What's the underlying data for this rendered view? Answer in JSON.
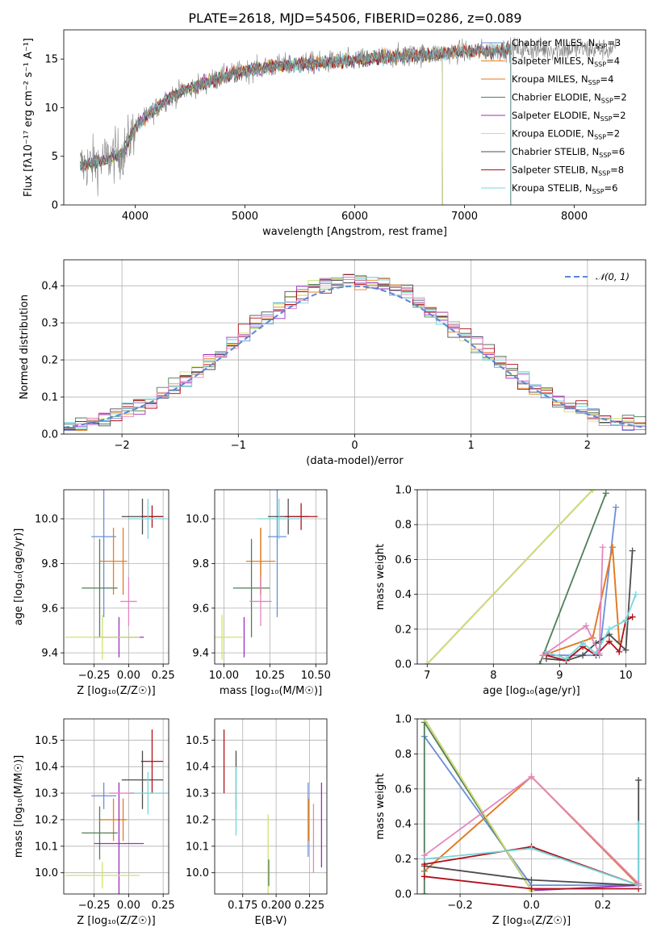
{
  "figure_title": "PLATE=2618, MJD=54506, FIBERID=0286, z=0.089",
  "colors": {
    "chabrier_miles": "#6a8fd8",
    "salpeter_miles": "#e8811a",
    "kroupa_miles": "#e27a25",
    "chabrier_elodie": "#4f7f57",
    "salpeter_elodie": "#9a2fbf",
    "kroupa_elodie": "#cfe26c",
    "chabrier_stelib": "#4d4d4d",
    "salpeter_stelib": "#b0101a",
    "kroupa_stelib": "#77d6da",
    "pink": "#e585c0",
    "data": "#808080",
    "normal": "#5a87d6"
  },
  "chart_data": [
    {
      "id": "spectrum",
      "type": "line",
      "title": "PLATE=2618, MJD=54506, FIBERID=0286, z=0.089",
      "xlabel": "wavelength [Angstrom, rest frame]",
      "ylabel": "Flux [fλ10⁻¹⁷ erg cm⁻² s⁻¹ A⁻¹]",
      "xlim": [
        3350,
        8650
      ],
      "ylim": [
        0,
        18
      ],
      "xticks": [
        4000,
        5000,
        6000,
        7000,
        8000
      ],
      "yticks": [
        0,
        5,
        10,
        15
      ],
      "legend": {
        "location": "upper right",
        "entries": [
          {
            "label": "Chabrier MILES, N",
            "sub": "SSP",
            "suffix": "=3",
            "color": "#6a8fd8"
          },
          {
            "label": "Salpeter MILES, N",
            "sub": "SSP",
            "suffix": "=4",
            "color": "#e8811a"
          },
          {
            "label": "Kroupa MILES, N",
            "sub": "SSP",
            "suffix": "=4",
            "color": "#e27a25"
          },
          {
            "label": "Chabrier ELODIE, N",
            "sub": "SSP",
            "suffix": "=2",
            "color": "#4f7f57"
          },
          {
            "label": "Salpeter ELODIE, N",
            "sub": "SSP",
            "suffix": "=2",
            "color": "#9a2fbf"
          },
          {
            "label": "Kroupa ELODIE, N",
            "sub": "SSP",
            "suffix": "=2",
            "color": "#cfe26c"
          },
          {
            "label": "Chabrier STELIB, N",
            "sub": "SSP",
            "suffix": "=6",
            "color": "#4d4d4d"
          },
          {
            "label": "Salpeter STELIB, N",
            "sub": "SSP",
            "suffix": "=8",
            "color": "#b0101a"
          },
          {
            "label": "Kroupa STELIB, N",
            "sub": "SSP",
            "suffix": "=6",
            "color": "#77d6da"
          }
        ]
      },
      "continuum": {
        "x": [
          3500,
          3700,
          3900,
          4000,
          4100,
          4300,
          4500,
          4700,
          4900,
          5100,
          5300,
          5500,
          5800,
          6100,
          6400,
          6700,
          7000,
          7200,
          7400
        ],
        "y": [
          4.0,
          4.5,
          5.5,
          8.0,
          9.0,
          11.0,
          12.0,
          12.8,
          13.5,
          14.0,
          14.3,
          14.5,
          14.7,
          15.0,
          15.3,
          15.5,
          15.8,
          15.8,
          16.0
        ]
      },
      "noise_amplitude_lt_4000": 3.0,
      "noise_amplitude_gt_4000": 1.3,
      "elodie_cutoff": 6800,
      "model_cutoff": 7420,
      "data_range": [
        3500,
        8380
      ]
    },
    {
      "id": "residuals",
      "type": "histogram",
      "xlabel": "(data-model)/error",
      "ylabel": "Normed distribution",
      "xlim": [
        -2.5,
        2.5
      ],
      "ylim": [
        0,
        0.47
      ],
      "xticks": [
        -2,
        -1,
        0,
        1,
        2
      ],
      "yticks": [
        0.0,
        0.1,
        0.2,
        0.3,
        0.4
      ],
      "bin_width": 0.1,
      "overlay": {
        "label": "𝒩(0, 1)",
        "mean": 0,
        "sigma": 1,
        "style": "dashed",
        "color": "#5a87d6"
      }
    },
    {
      "id": "Z_vs_age",
      "type": "errorbar",
      "xlabel": "Z [log₁₀(Z/Z☉)]",
      "ylabel": "age  [log₁₀(age/yr)]",
      "xlim": [
        -0.47,
        0.29
      ],
      "ylim": [
        9.35,
        10.13
      ],
      "xticks": [
        -0.25,
        0.0,
        0.25
      ],
      "yticks": [
        9.4,
        9.6,
        9.8,
        10.0
      ],
      "points": [
        {
          "name": "Chabrier MILES",
          "color": "#6a8fd8",
          "x": -0.18,
          "xerr": 0.09,
          "y": 9.92,
          "yerr": 0.36
        },
        {
          "name": "Salpeter MILES",
          "color": "#e8811a",
          "x": -0.11,
          "xerr": 0.1,
          "y": 9.81,
          "yerr": 0.15
        },
        {
          "name": "Kroupa MILES",
          "color": "#e27a25",
          "x": -0.04,
          "xerr": 0.0,
          "y": 9.81,
          "yerr": 0.15
        },
        {
          "name": "Chabrier ELODIE",
          "color": "#4f7f57",
          "x": -0.21,
          "xerr": 0.13,
          "y": 9.69,
          "yerr": 0.22
        },
        {
          "name": "Salpeter ELODIE",
          "color": "#9a2fbf",
          "x": -0.07,
          "xerr": 0.18,
          "y": 9.47,
          "yerr": 0.09
        },
        {
          "name": "Kroupa ELODIE",
          "color": "#cfe26c",
          "x": -0.19,
          "xerr": 0.27,
          "y": 9.47,
          "yerr": 0.1
        },
        {
          "name": "Chabrier STELIB",
          "color": "#4d4d4d",
          "x": 0.1,
          "xerr": 0.15,
          "y": 10.01,
          "yerr": 0.08
        },
        {
          "name": "Salpeter STELIB",
          "color": "#b0101a",
          "x": 0.17,
          "xerr": 0.08,
          "y": 10.01,
          "yerr": 0.05
        },
        {
          "name": "Kroupa STELIB",
          "color": "#77d6da",
          "x": 0.14,
          "xerr": 0.14,
          "y": 10.0,
          "yerr": 0.09
        },
        {
          "name": "Pink",
          "color": "#e585c0",
          "x": 0.0,
          "xerr": 0.06,
          "y": 9.63,
          "yerr": 0.11
        }
      ]
    },
    {
      "id": "mass_vs_age",
      "type": "errorbar",
      "xlabel": "mass [log₁₀(M/M☉)]",
      "ylabel": "",
      "xlim": [
        9.95,
        10.56
      ],
      "ylim": [
        9.35,
        10.13
      ],
      "xticks": [
        10.0,
        10.25,
        10.5
      ],
      "yticks": [
        9.4,
        9.6,
        9.8,
        10.0
      ],
      "points": [
        {
          "name": "Chabrier MILES",
          "color": "#6a8fd8",
          "x": 10.29,
          "xerr": 0.05,
          "y": 9.92,
          "yerr": 0.36
        },
        {
          "name": "Salpeter MILES",
          "color": "#e8811a",
          "x": 10.2,
          "xerr": 0.08,
          "y": 9.81,
          "yerr": 0.15
        },
        {
          "name": "Kroupa MILES",
          "color": "#e27a25",
          "x": 10.2,
          "xerr": 0.0,
          "y": 9.81,
          "yerr": 0.15
        },
        {
          "name": "Chabrier ELODIE",
          "color": "#4f7f57",
          "x": 10.15,
          "xerr": 0.1,
          "y": 9.69,
          "yerr": 0.22
        },
        {
          "name": "Salpeter ELODIE",
          "color": "#9a2fbf",
          "x": 10.11,
          "xerr": 0.0,
          "y": 9.47,
          "yerr": 0.09
        },
        {
          "name": "Kroupa ELODIE",
          "color": "#cfe26c",
          "x": 9.99,
          "xerr": 0.0,
          "y": 9.47,
          "yerr": 0.1
        },
        {
          "name": "Chabrier STELIB",
          "color": "#4d4d4d",
          "x": 10.35,
          "xerr": 0.11,
          "y": 10.01,
          "yerr": 0.08
        },
        {
          "name": "Salpeter STELIB",
          "color": "#b0101a",
          "x": 10.42,
          "xerr": 0.09,
          "y": 10.01,
          "yerr": 0.06
        },
        {
          "name": "Kroupa STELIB",
          "color": "#77d6da",
          "x": 10.3,
          "xerr": 0.12,
          "y": 10.0,
          "yerr": 0.09
        },
        {
          "name": "Pink",
          "color": "#e585c0",
          "x": 10.2,
          "xerr": 0.06,
          "y": 9.63,
          "yerr": 0.11
        },
        {
          "name": "Yellow-green",
          "color": "#cfe26c",
          "x": 10.0,
          "xerr": 0.1,
          "y": 9.47,
          "yerr": 0.0
        }
      ]
    },
    {
      "id": "age_vs_weight",
      "type": "line",
      "xlabel": "age  [log₁₀(age/yr)]",
      "ylabel": "mass weight",
      "xlim": [
        6.85,
        10.3
      ],
      "ylim": [
        0,
        1.0
      ],
      "xticks": [
        7,
        8,
        9,
        10
      ],
      "yticks": [
        0.0,
        0.2,
        0.4,
        0.6,
        0.8,
        1.0
      ],
      "series": [
        {
          "name": "Chabrier MILES",
          "color": "#6a8fd8",
          "x": [
            8.75,
            9.6,
            9.85
          ],
          "y": [
            0.05,
            0.05,
            0.9
          ]
        },
        {
          "name": "Salpeter MILES",
          "color": "#e8811a",
          "x": [
            8.75,
            9.5,
            9.8,
            9.9
          ],
          "y": [
            0.05,
            0.15,
            0.67,
            0.13
          ]
        },
        {
          "name": "Kroupa MILES",
          "color": "#e27a25",
          "x": [
            8.75,
            9.5,
            9.8,
            9.9
          ],
          "y": [
            0.05,
            0.15,
            0.67,
            0.13
          ]
        },
        {
          "name": "Chabrier ELODIE",
          "color": "#4f7f57",
          "x": [
            8.7,
            9.7
          ],
          "y": [
            0.0,
            0.98
          ]
        },
        {
          "name": "Salpeter ELODIE",
          "color": "#9a2fbf",
          "x": [
            7.0,
            9.5
          ],
          "y": [
            0.0,
            1.0
          ]
        },
        {
          "name": "Kroupa ELODIE",
          "color": "#cfe26c",
          "x": [
            7.0,
            9.5
          ],
          "y": [
            0.0,
            1.0
          ]
        },
        {
          "name": "Chabrier STELIB",
          "color": "#4d4d4d",
          "x": [
            8.8,
            9.1,
            9.35,
            9.55,
            9.75,
            10.0,
            10.1
          ],
          "y": [
            0.03,
            0.02,
            0.05,
            0.12,
            0.17,
            0.08,
            0.65
          ]
        },
        {
          "name": "Salpeter STELIB",
          "color": "#b0101a",
          "x": [
            8.8,
            9.1,
            9.35,
            9.55,
            9.75,
            9.9,
            10.0,
            10.1
          ],
          "y": [
            0.05,
            0.02,
            0.1,
            0.05,
            0.13,
            0.07,
            0.25,
            0.27
          ]
        },
        {
          "name": "Kroupa STELIB",
          "color": "#77d6da",
          "x": [
            8.8,
            9.1,
            9.35,
            9.55,
            9.75,
            10.0,
            10.15
          ],
          "y": [
            0.07,
            0.03,
            0.12,
            0.06,
            0.2,
            0.25,
            0.4
          ]
        },
        {
          "name": "Pink",
          "color": "#e585c0",
          "x": [
            8.75,
            9.4,
            9.6,
            9.65
          ],
          "y": [
            0.05,
            0.22,
            0.06,
            0.67
          ]
        }
      ]
    },
    {
      "id": "Z_vs_mass",
      "type": "errorbar",
      "xlabel": "Z [log₁₀(Z/Z☉)]",
      "ylabel": "mass [log₁₀(M/M☉)]",
      "xlim": [
        -0.47,
        0.29
      ],
      "ylim": [
        9.92,
        10.58
      ],
      "xticks": [
        -0.25,
        0.0,
        0.25
      ],
      "yticks": [
        10.0,
        10.1,
        10.2,
        10.3,
        10.4,
        10.5
      ],
      "points": [
        {
          "name": "Chabrier MILES",
          "color": "#6a8fd8",
          "x": -0.18,
          "xerr": 0.09,
          "y": 10.29,
          "yerr": 0.05
        },
        {
          "name": "Salpeter MILES",
          "color": "#e8811a",
          "x": -0.11,
          "xerr": 0.1,
          "y": 10.2,
          "yerr": 0.08
        },
        {
          "name": "Kroupa MILES",
          "color": "#e27a25",
          "x": -0.04,
          "xerr": 0.0,
          "y": 10.2,
          "yerr": 0.08
        },
        {
          "name": "Chabrier ELODIE",
          "color": "#4f7f57",
          "x": -0.21,
          "xerr": 0.13,
          "y": 10.15,
          "yerr": 0.1
        },
        {
          "name": "Salpeter ELODIE",
          "color": "#9a2fbf",
          "x": -0.07,
          "xerr": 0.18,
          "y": 10.11,
          "yerr": 0.23
        },
        {
          "name": "Kroupa ELODIE",
          "color": "#cfe26c",
          "x": -0.19,
          "xerr": 0.27,
          "y": 9.99,
          "yerr": 0.05
        },
        {
          "name": "Chabrier STELIB",
          "color": "#4d4d4d",
          "x": 0.1,
          "xerr": 0.15,
          "y": 10.35,
          "yerr": 0.11
        },
        {
          "name": "Salpeter STELIB",
          "color": "#b0101a",
          "x": 0.17,
          "xerr": 0.08,
          "y": 10.42,
          "yerr": 0.12
        },
        {
          "name": "Kroupa STELIB",
          "color": "#77d6da",
          "x": 0.14,
          "xerr": 0.14,
          "y": 10.3,
          "yerr": 0.08
        },
        {
          "name": "Pink",
          "color": "#e585c0",
          "x": -0.05,
          "xerr": 0.09,
          "y": 10.3,
          "yerr": 0.0
        }
      ]
    },
    {
      "id": "EBV_vs_mass",
      "type": "errorbar",
      "xlabel": "E(B-V)",
      "ylabel": "",
      "xlim": [
        0.154,
        0.238
      ],
      "ylim": [
        9.92,
        10.58
      ],
      "xticks": [
        0.175,
        0.2,
        0.225
      ],
      "xticklabels": [
        "0.175",
        "0.200",
        "0.225"
      ],
      "yticks": [
        10.0,
        10.1,
        10.2,
        10.3,
        10.4,
        10.5
      ],
      "points": [
        {
          "name": "Salpeter STELIB",
          "color": "#b0101a",
          "x": 0.161,
          "xerr": 0,
          "y": 10.42,
          "yerr": 0.12
        },
        {
          "name": "Chabrier STELIB",
          "color": "#4d4d4d",
          "x": 0.17,
          "xerr": 0,
          "y": 10.35,
          "yerr": 0.11
        },
        {
          "name": "Kroupa STELIB",
          "color": "#77d6da",
          "x": 0.17,
          "xerr": 0,
          "y": 10.27,
          "yerr": 0.13
        },
        {
          "name": "Kroupa ELODIE",
          "color": "#cfe26c",
          "x": 0.194,
          "xerr": 0,
          "y": 10.04,
          "yerr": 0.18
        },
        {
          "name": "Chabrier ELODIE",
          "color": "#4f7f57",
          "x": 0.1945,
          "xerr": 0,
          "y": 10.0,
          "yerr": 0.05
        },
        {
          "name": "Chabrier MILES",
          "color": "#6a8fd8",
          "x": 0.224,
          "xerr": 0,
          "y": 10.2,
          "yerr": 0.14
        },
        {
          "name": "Salpeter MILES",
          "color": "#e8811a",
          "x": 0.2243,
          "xerr": 0,
          "y": 10.2,
          "yerr": 0.08
        },
        {
          "name": "Pink",
          "color": "#e585c0",
          "x": 0.228,
          "xerr": 0,
          "y": 10.13,
          "yerr": 0.13
        },
        {
          "name": "Salpeter ELODIE",
          "color": "#9a2fbf",
          "x": 0.234,
          "xerr": 0,
          "y": 10.18,
          "yerr": 0.16
        }
      ]
    },
    {
      "id": "Zcomp_vs_weight",
      "type": "line",
      "xlabel": "Z [log₁₀(Z/Z☉)]",
      "ylabel": "mass weight",
      "xlim": [
        -0.32,
        0.32
      ],
      "ylim": [
        0,
        1.0
      ],
      "xticks": [
        -0.2,
        0.0,
        0.2
      ],
      "yticks": [
        0.0,
        0.2,
        0.4,
        0.6,
        0.8,
        1.0
      ],
      "series": [
        {
          "name": "Chabrier MILES",
          "color": "#6a8fd8",
          "x": [
            -0.3,
            0.0,
            0.3
          ],
          "y": [
            0.9,
            0.05,
            0.05
          ]
        },
        {
          "name": "Salpeter MILES",
          "color": "#e8811a",
          "x": [
            -0.3,
            0.0,
            0.3
          ],
          "y": [
            0.13,
            0.67,
            0.05
          ]
        },
        {
          "name": "Kroupa MILES",
          "color": "#e27a25",
          "x": [
            -0.3,
            0.0,
            0.3
          ],
          "y": [
            0.13,
            0.67,
            0.05
          ]
        },
        {
          "name": "Chabrier ELODIE",
          "color": "#4f7f57",
          "x": [
            -0.3,
            -0.3,
            0.0
          ],
          "y": [
            0.0,
            0.98,
            0.02
          ]
        },
        {
          "name": "Salpeter ELODIE",
          "color": "#9a2fbf",
          "x": [
            -0.3,
            0.0,
            0.3
          ],
          "y": [
            1.0,
            0.02,
            0.05
          ]
        },
        {
          "name": "Kroupa ELODIE",
          "color": "#cfe26c",
          "x": [
            -0.3,
            0.0
          ],
          "y": [
            1.0,
            0.02
          ]
        },
        {
          "name": "Chabrier STELIB",
          "color": "#4d4d4d",
          "x": [
            -0.3,
            0.0,
            0.3,
            0.3
          ],
          "y": [
            0.16,
            0.08,
            0.05,
            0.65
          ]
        },
        {
          "name": "Salpeter STELIB",
          "color": "#b0101a",
          "x": [
            -0.3,
            0.0,
            0.3
          ],
          "y": [
            0.1,
            0.03,
            0.03
          ]
        },
        {
          "name": "Salpeter STELIB 2",
          "color": "#b0101a",
          "x": [
            -0.3,
            0.0,
            0.3
          ],
          "y": [
            0.17,
            0.27,
            0.05
          ]
        },
        {
          "name": "Kroupa STELIB",
          "color": "#77d6da",
          "x": [
            -0.3,
            0.0,
            0.3,
            0.3
          ],
          "y": [
            0.2,
            0.26,
            0.05,
            0.4
          ]
        },
        {
          "name": "Pink",
          "color": "#e585c0",
          "x": [
            -0.3,
            0.0,
            0.3
          ],
          "y": [
            0.22,
            0.67,
            0.06
          ]
        }
      ]
    }
  ]
}
